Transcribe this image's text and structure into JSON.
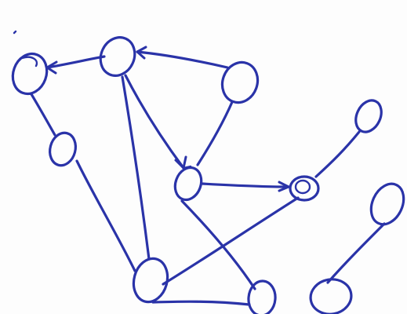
{
  "diagram": {
    "type": "hand-drawn-graph",
    "ink_color": "#2a33a8",
    "background_color": "#fdfdfd",
    "nodes": [
      {
        "id": "n1",
        "name": "node-top-left"
      },
      {
        "id": "n2",
        "name": "node-top-center"
      },
      {
        "id": "n3",
        "name": "node-top-right"
      },
      {
        "id": "n4",
        "name": "node-left-middle"
      },
      {
        "id": "n5",
        "name": "node-center"
      },
      {
        "id": "n6",
        "name": "node-right-middle"
      },
      {
        "id": "n7",
        "name": "node-far-right-top"
      },
      {
        "id": "n8",
        "name": "node-bottom-left"
      },
      {
        "id": "n9",
        "name": "node-bottom-center"
      },
      {
        "id": "n10",
        "name": "node-bottom-right"
      },
      {
        "id": "n11",
        "name": "node-far-right-bottom"
      }
    ],
    "edges": [
      {
        "from": "n2",
        "to": "n1",
        "directed": true
      },
      {
        "from": "n3",
        "to": "n2",
        "directed": true
      },
      {
        "from": "n1",
        "to": "n4",
        "directed": false
      },
      {
        "from": "n4",
        "to": "n8",
        "directed": false
      },
      {
        "from": "n2",
        "to": "n5",
        "directed": true
      },
      {
        "from": "n3",
        "to": "n5",
        "directed": false
      },
      {
        "from": "n2",
        "to": "n8",
        "directed": false
      },
      {
        "from": "n5",
        "to": "n6",
        "directed": true
      },
      {
        "from": "n6",
        "to": "n7",
        "directed": false
      },
      {
        "from": "n5",
        "to": "n9",
        "directed": false
      },
      {
        "from": "n8",
        "to": "n6",
        "directed": false
      },
      {
        "from": "n8",
        "to": "n9",
        "directed": false
      },
      {
        "from": "n10",
        "to": "n11",
        "directed": false
      }
    ]
  }
}
